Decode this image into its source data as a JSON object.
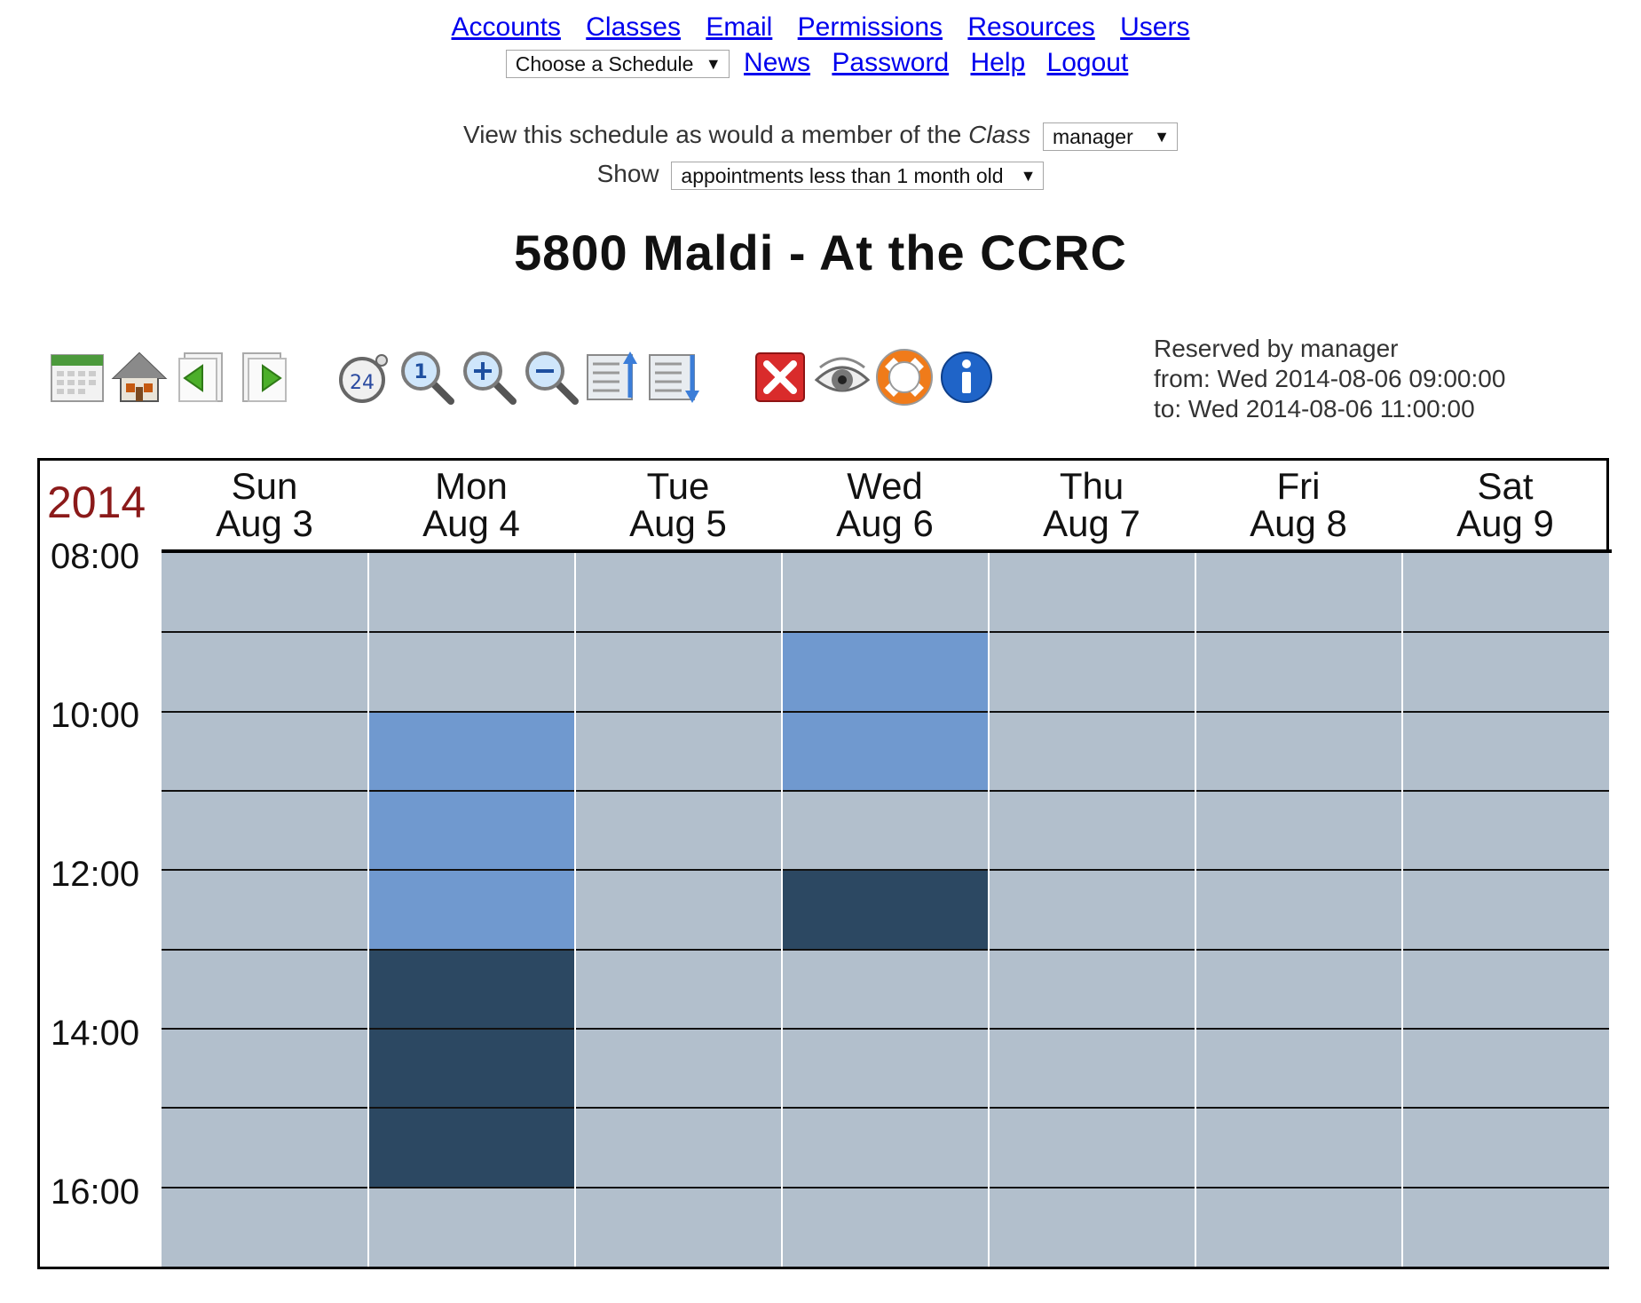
{
  "nav": {
    "links_row1": [
      "Accounts",
      "Classes",
      "Email",
      "Permissions",
      "Resources",
      "Users"
    ],
    "schedule_select": "Choose a Schedule",
    "links_row2": [
      "News",
      "Password",
      "Help",
      "Logout"
    ]
  },
  "view_as": {
    "prefix": "View this schedule as would a member of the",
    "class_word": "Class",
    "class_value": "manager",
    "show_label": "Show",
    "show_value": "appointments less than 1 month old"
  },
  "title": "5800 Maldi - At the CCRC",
  "toolbar_icons": [
    "calendar-icon",
    "home-icon",
    "previous-page-icon",
    "next-page-icon",
    "24-hour-clock-icon",
    "zoom-1-icon",
    "zoom-in-icon",
    "zoom-out-icon",
    "scroll-up-icon",
    "scroll-down-icon",
    "delete-icon",
    "eye-icon",
    "lifebuoy-help-icon",
    "info-icon"
  ],
  "reservation": {
    "by": "Reserved by manager",
    "from": "from: Wed 2014-08-06 09:00:00",
    "to": "to: Wed 2014-08-06 11:00:00"
  },
  "calendar": {
    "year": "2014",
    "days": [
      {
        "dow": "Sun",
        "date": "Aug 3"
      },
      {
        "dow": "Mon",
        "date": "Aug 4"
      },
      {
        "dow": "Tue",
        "date": "Aug 5"
      },
      {
        "dow": "Wed",
        "date": "Aug 6"
      },
      {
        "dow": "Thu",
        "date": "Aug 7"
      },
      {
        "dow": "Fri",
        "date": "Aug 8"
      },
      {
        "dow": "Sat",
        "date": "Aug 9"
      }
    ],
    "time_labels": [
      "08:00",
      "10:00",
      "12:00",
      "14:00",
      "16:00"
    ],
    "start_hour": 8,
    "end_hour": 17,
    "colors": {
      "free": "#b2bfcc",
      "selected": "#7099cf",
      "booked": "#2c4862"
    },
    "appointments": [
      {
        "day": 1,
        "start": 10,
        "end": 13,
        "kind": "selected"
      },
      {
        "day": 1,
        "start": 13,
        "end": 16,
        "kind": "booked"
      },
      {
        "day": 3,
        "start": 9,
        "end": 11,
        "kind": "selected"
      },
      {
        "day": 3,
        "start": 12,
        "end": 13,
        "kind": "booked"
      }
    ]
  }
}
